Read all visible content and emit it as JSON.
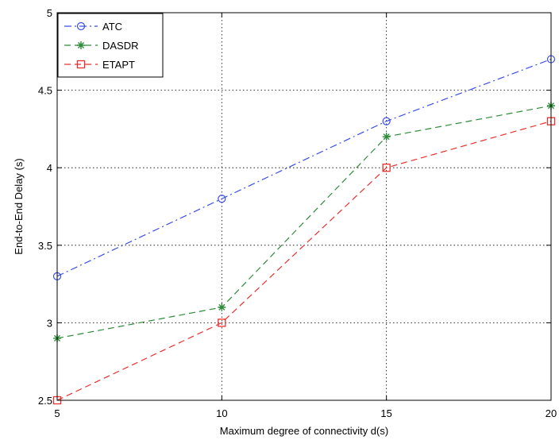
{
  "chart_data": {
    "type": "line",
    "title": "",
    "xlabel": "Maximum degree of connectivity  d(s)",
    "ylabel": "End-to-End Delay (s)",
    "x": [
      5,
      10,
      15,
      20
    ],
    "xlim": [
      5,
      20
    ],
    "ylim": [
      2.5,
      5
    ],
    "xticks": [
      "5",
      "10",
      "15",
      "20"
    ],
    "yticks": [
      "2.5",
      "3",
      "3.5",
      "4",
      "4.5",
      "5"
    ],
    "grid": true,
    "legend_position": "top-left",
    "series": [
      {
        "name": "ATC",
        "values": [
          3.3,
          3.8,
          4.3,
          4.7
        ],
        "color": "#3b4fe8",
        "line_style": "dash-dot",
        "marker": "circle"
      },
      {
        "name": "DASDR",
        "values": [
          2.9,
          3.1,
          4.2,
          4.4
        ],
        "color": "#2e8b3a",
        "line_style": "dashed",
        "marker": "star"
      },
      {
        "name": "ETAPT",
        "values": [
          2.5,
          3.0,
          4.0,
          4.3
        ],
        "color": "#e8302f",
        "line_style": "dashed",
        "marker": "square"
      }
    ]
  }
}
